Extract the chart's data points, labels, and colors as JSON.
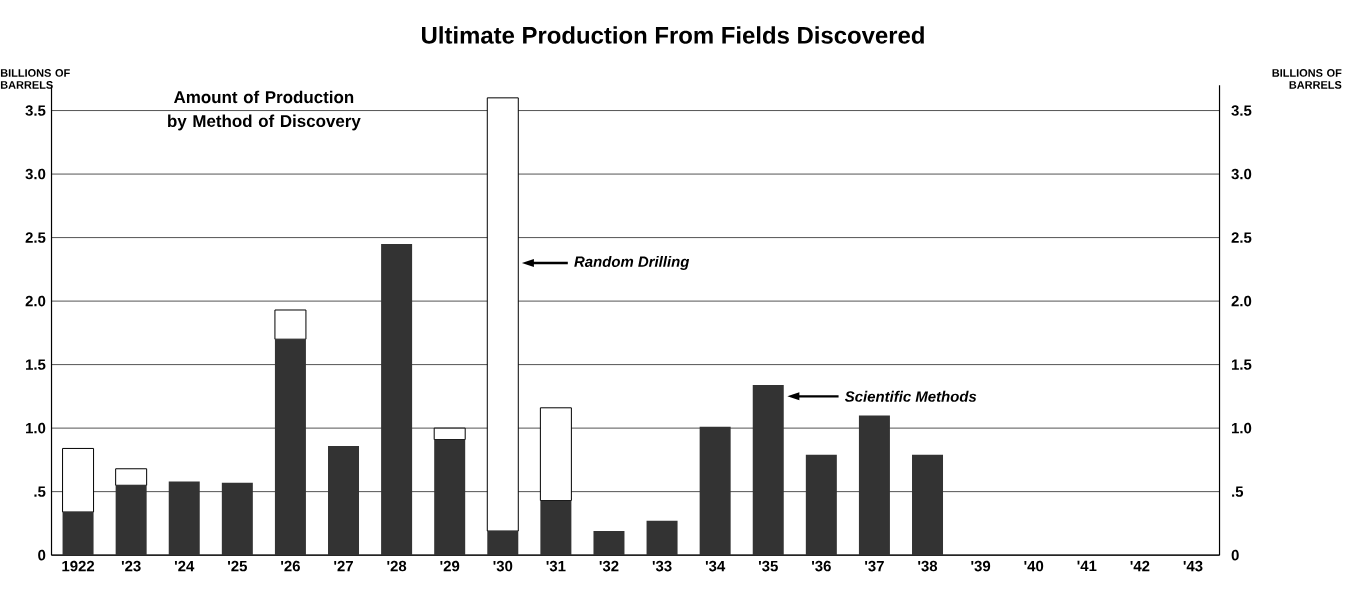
{
  "chart_data": {
    "type": "bar",
    "title": "Ultimate Production From Fields Discovered",
    "subtitle": "Amount of Production by Method of Discovery",
    "ylabel": "BILLIONS OF BARRELS",
    "y2label": "BILLIONS OF BARRELS",
    "categories": [
      "1922",
      "'23",
      "'24",
      "'25",
      "'26",
      "'27",
      "'28",
      "'29",
      "'30",
      "'31",
      "'32",
      "'33",
      "'34",
      "'35",
      "'36",
      "'37",
      "'38",
      "'39",
      "'40",
      "'41",
      "'42",
      "'43"
    ],
    "stacked": true,
    "series": [
      {
        "color": "#333333",
        "values": [
          0.34,
          0.55,
          0.58,
          0.57,
          1.7,
          0.86,
          2.45,
          0.91,
          0.19,
          0.43,
          0.19,
          0.27,
          1.01,
          1.34,
          0.79,
          1.1,
          0.79,
          null,
          null,
          null,
          null,
          null
        ]
      },
      {
        "color": "#ffffff",
        "values": [
          0.5,
          0.13,
          null,
          null,
          0.23,
          null,
          null,
          0.09,
          3.41,
          0.73,
          null,
          null,
          null,
          null,
          null,
          null,
          null,
          null,
          null,
          null,
          null,
          null
        ]
      }
    ],
    "ylim": [
      0,
      3.7
    ],
    "yticks": [
      {
        "value": 0,
        "label": "0"
      },
      {
        "value": 0.5,
        "label": ".5"
      },
      {
        "value": 1.0,
        "label": "1.0"
      },
      {
        "value": 1.5,
        "label": "1.5"
      },
      {
        "value": 2.0,
        "label": "2.0"
      },
      {
        "value": 2.5,
        "label": "2.5"
      },
      {
        "value": 3.0,
        "label": "3.0"
      },
      {
        "value": 3.5,
        "label": "3.5"
      }
    ],
    "y2lim": [
      0,
      3.7
    ],
    "y2ticks": [
      {
        "value": 0,
        "label": "0"
      },
      {
        "value": 0.5,
        "label": ".5"
      },
      {
        "value": 1.0,
        "label": "1.0"
      },
      {
        "value": 1.5,
        "label": "1.5"
      },
      {
        "value": 2.0,
        "label": "2.0"
      },
      {
        "value": 2.5,
        "label": "2.5"
      },
      {
        "value": 3.0,
        "label": "3.0"
      },
      {
        "value": 3.5,
        "label": "3.5"
      }
    ],
    "grid": "y",
    "annotations": [
      "Random Drilling",
      "Scientific Methods"
    ]
  }
}
